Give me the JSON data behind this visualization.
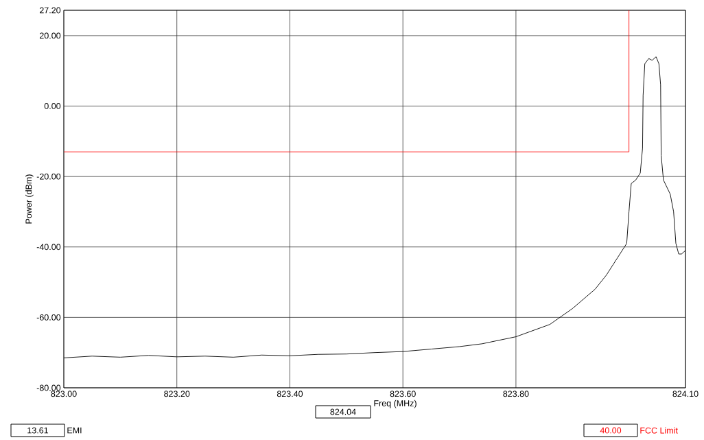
{
  "chart_data": {
    "type": "line",
    "xlabel": "Freq (MHz)",
    "ylabel": "Power (dBm)",
    "series": [
      {
        "color": "#000000",
        "x": [
          823.0,
          823.05,
          823.1,
          823.15,
          823.2,
          823.25,
          823.3,
          823.35,
          823.4,
          823.45,
          823.5,
          823.55,
          823.6,
          823.65,
          823.7,
          823.74,
          823.8,
          823.86,
          823.9,
          823.94,
          823.96,
          823.98,
          823.996,
          824.0,
          824.004,
          824.012,
          824.02,
          824.024,
          824.025,
          824.028,
          824.035,
          824.041,
          824.048,
          824.053,
          824.056,
          824.057,
          824.061,
          824.067,
          824.073,
          824.079,
          824.083,
          824.088,
          824.093,
          824.1
        ],
        "values": [
          -71.5,
          -71,
          -71.3,
          -70.8,
          -71.2,
          -71,
          -71.3,
          -70.7,
          -70.9,
          -70.5,
          -70.4,
          -70,
          -69.7,
          -69,
          -68.3,
          -67.5,
          -65.5,
          -62,
          -57.5,
          -52,
          -48,
          -43,
          -39,
          -30,
          -22,
          -21,
          -19,
          -12,
          3,
          12,
          13.5,
          13,
          14,
          12,
          6,
          -14,
          -21,
          -23,
          -25,
          -30,
          -39,
          -42,
          -42,
          -41
        ]
      },
      {
        "color": "#ff0000",
        "x": [
          823.0,
          824.0,
          824.0
        ],
        "values": [
          -13,
          -13,
          27.2
        ]
      }
    ],
    "xlim": [
      823.0,
      824.1
    ],
    "ylim": [
      -80,
      27.2
    ],
    "xticks": [
      {
        "value": 823.0,
        "label": "823.00"
      },
      {
        "value": 823.2,
        "label": "823.20"
      },
      {
        "value": 823.4,
        "label": "823.40"
      },
      {
        "value": 823.6,
        "label": "823.60"
      },
      {
        "value": 823.8,
        "label": "823.80"
      },
      {
        "value": 824.1,
        "label": "824.10"
      }
    ],
    "yticks": [
      {
        "value": -80,
        "label": "-80.00"
      },
      {
        "value": -60,
        "label": "-60.00"
      },
      {
        "value": -40,
        "label": "-40.00"
      },
      {
        "value": -20,
        "label": "-20.00"
      },
      {
        "value": 0,
        "label": "0.00"
      },
      {
        "value": 20,
        "label": "20.00"
      },
      {
        "value": 27.2,
        "label": "27.20"
      }
    ],
    "grid": true,
    "marker": "none",
    "line_style": "solid",
    "annotations": [
      "824.04",
      "13.61",
      "EMI",
      "40.00",
      "FCC Limit"
    ]
  }
}
